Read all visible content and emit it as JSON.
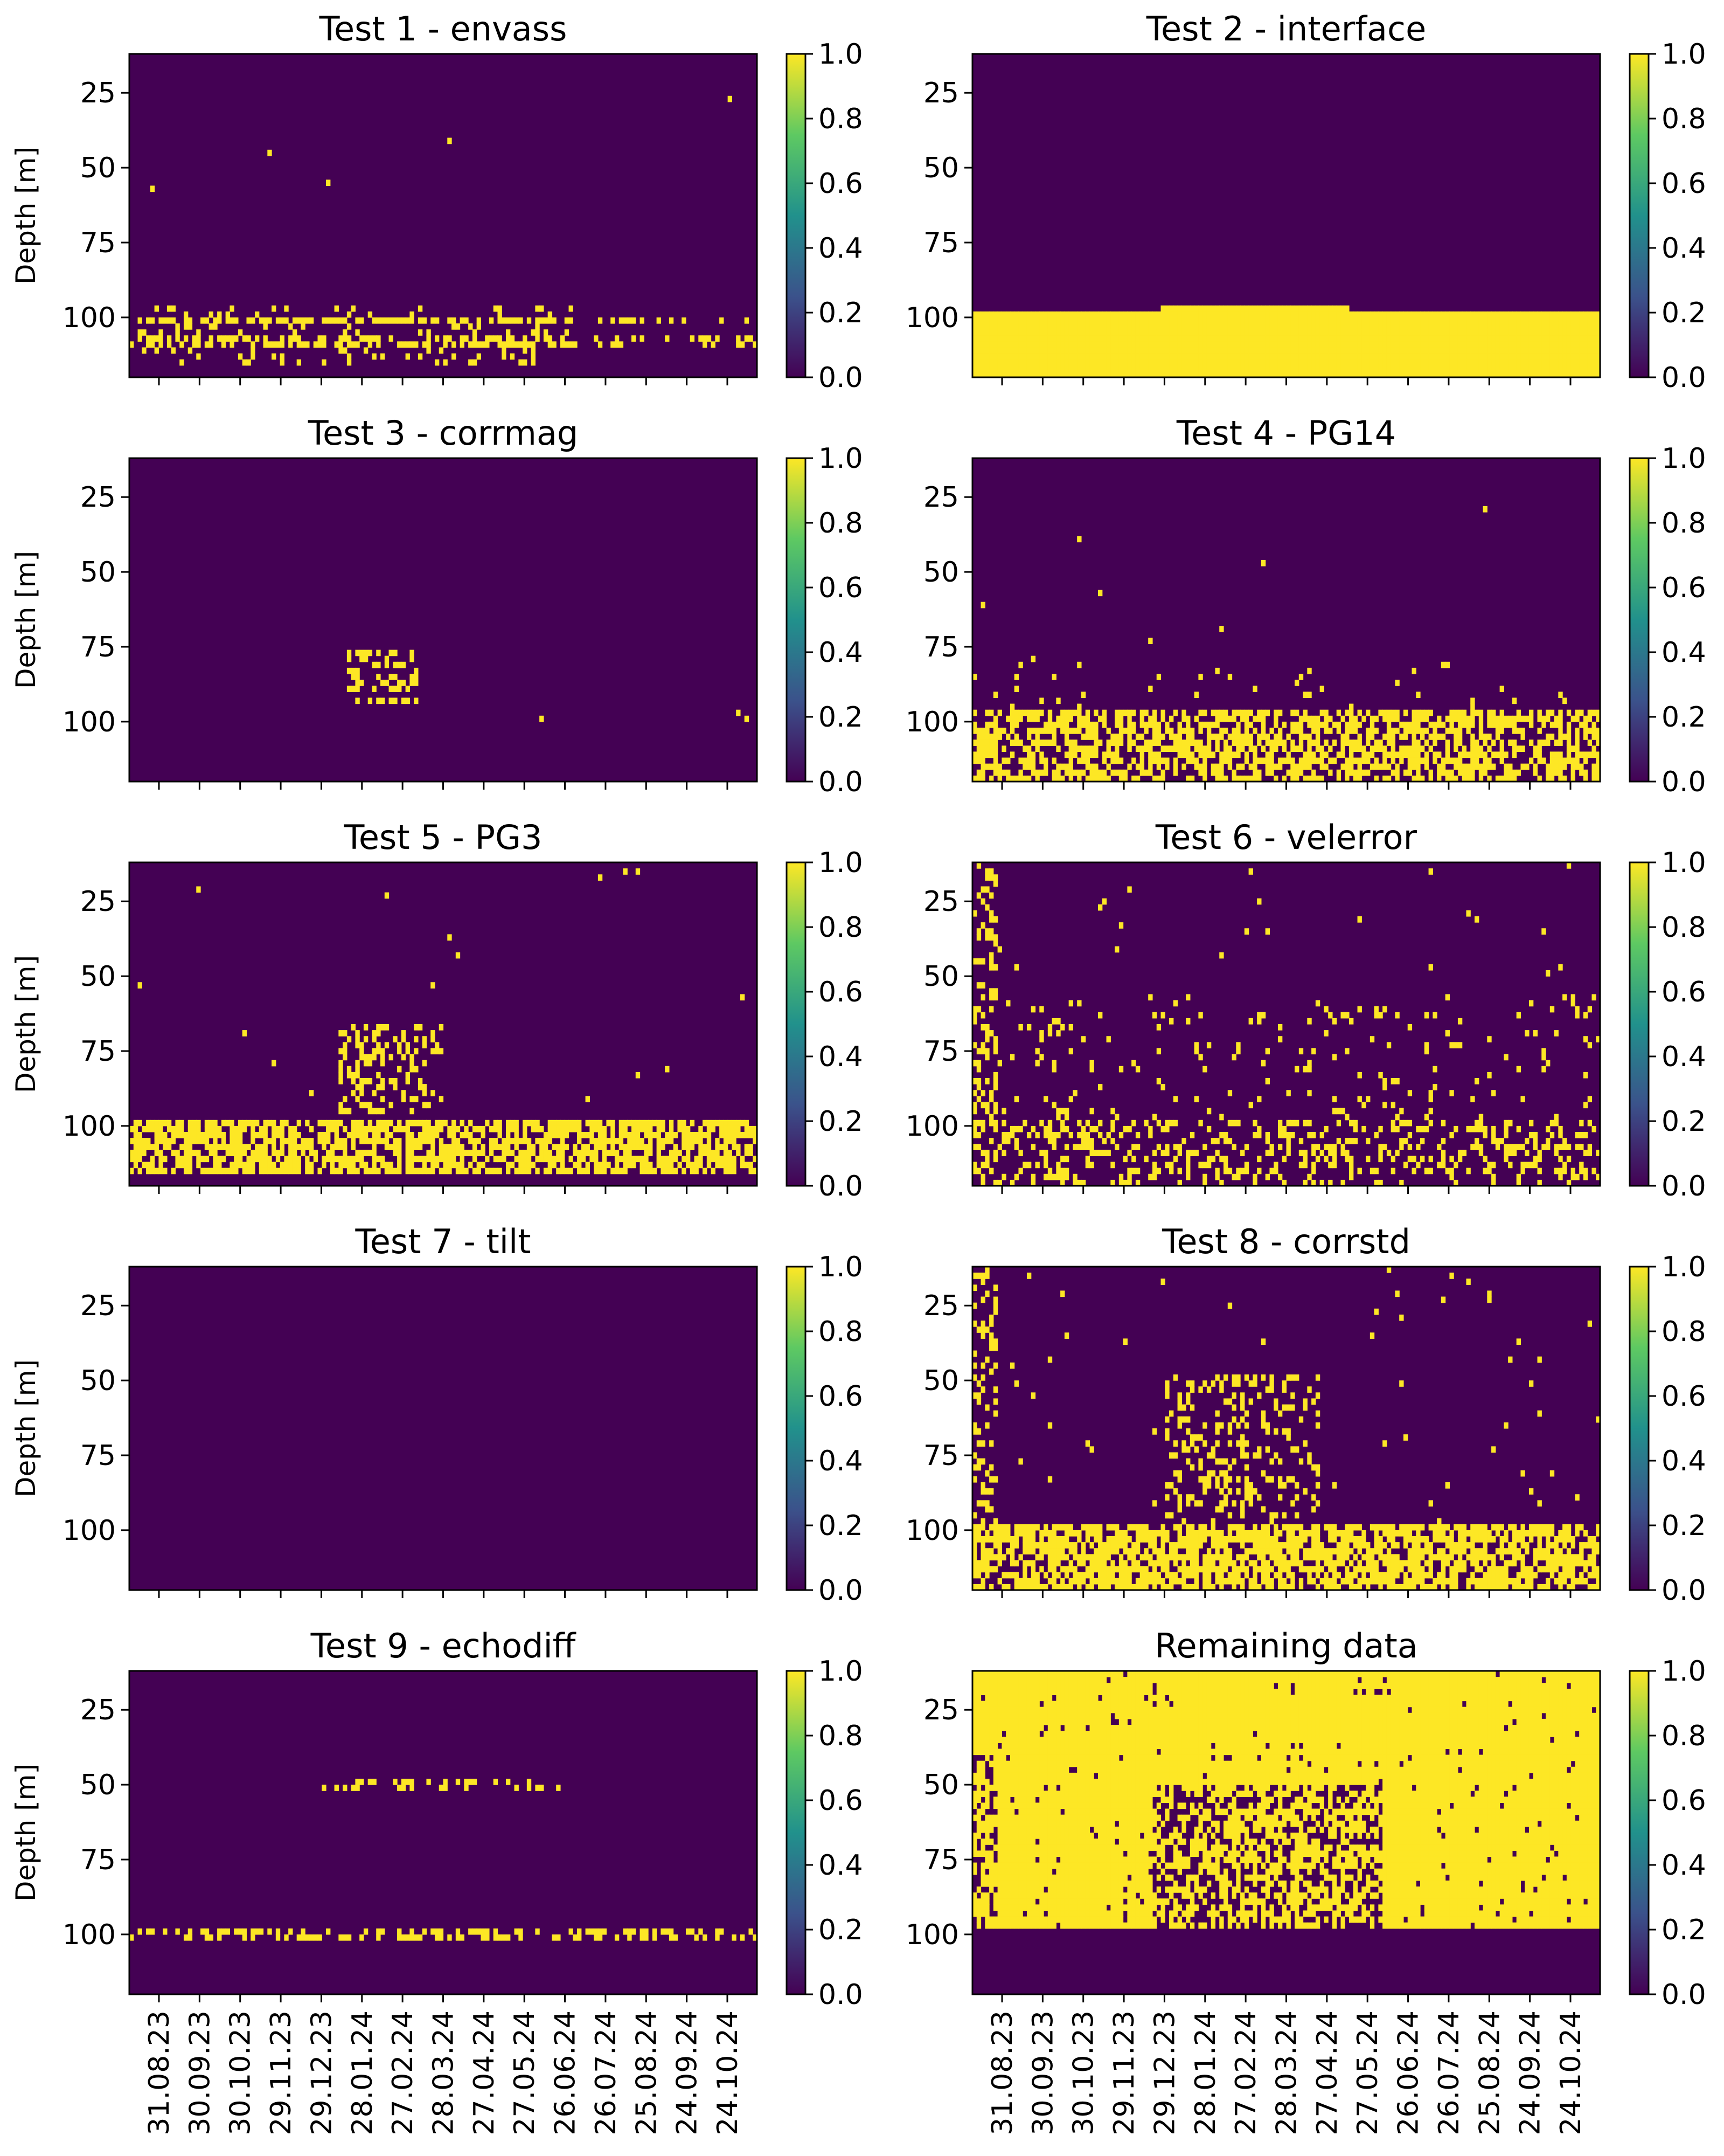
{
  "figure": {
    "colormap": [
      "#440154",
      "#3b528b",
      "#21918c",
      "#5ec962",
      "#fde725"
    ],
    "low_color": "#440154",
    "high_color": "#fde725"
  },
  "chart_data": [
    {
      "type": "heatmap",
      "title": "Test 1 - envass",
      "ylabel": "Depth [m]",
      "yticks": [
        25,
        50,
        75,
        100
      ],
      "ylim": [
        120,
        12
      ],
      "xticks": [],
      "colorbar_ticks": [
        "0.0",
        "0.2",
        "0.4",
        "0.6",
        "0.8",
        "1.0"
      ],
      "clim": [
        0,
        1
      ],
      "flag_band": "scattered near bottom (about 95-115 m)"
    },
    {
      "type": "heatmap",
      "title": "Test 2 - interface",
      "ylabel": "",
      "yticks": [
        25,
        50,
        75,
        100
      ],
      "ylim": [
        120,
        12
      ],
      "xticks": [],
      "colorbar_ticks": [
        "0.0",
        "0.2",
        "0.4",
        "0.6",
        "0.8",
        "1.0"
      ],
      "clim": [
        0,
        1
      ],
      "flag_band": "solid below about 96 m"
    },
    {
      "type": "heatmap",
      "title": "Test 3 - corrmag",
      "ylabel": "Depth [m]",
      "yticks": [
        25,
        50,
        75,
        100
      ],
      "ylim": [
        120,
        12
      ],
      "xticks": [],
      "colorbar_ticks": [
        "0.0",
        "0.2",
        "0.4",
        "0.6",
        "0.8",
        "1.0"
      ],
      "clim": [
        0,
        1
      ],
      "flag_band": "isolated cluster near Jan-Feb 2024 (75-95 m)"
    },
    {
      "type": "heatmap",
      "title": "Test 4 - PG14",
      "ylabel": "",
      "yticks": [
        25,
        50,
        75,
        100
      ],
      "ylim": [
        120,
        12
      ],
      "xticks": [],
      "colorbar_ticks": [
        "0.0",
        "0.2",
        "0.4",
        "0.6",
        "0.8",
        "1.0"
      ],
      "clim": [
        0,
        1
      ],
      "flag_band": "dense near bottom (about 95-120 m)"
    },
    {
      "type": "heatmap",
      "title": "Test 5 - PG3",
      "ylabel": "Depth [m]",
      "yticks": [
        25,
        50,
        75,
        100
      ],
      "ylim": [
        120,
        12
      ],
      "xticks": [],
      "colorbar_ticks": [
        "0.0",
        "0.2",
        "0.4",
        "0.6",
        "0.8",
        "1.0"
      ],
      "clim": [
        0,
        1
      ],
      "flag_band": "dense near bottom with plume 65-90 m in Jan-Mar 2024"
    },
    {
      "type": "heatmap",
      "title": "Test 6 - velerror",
      "ylabel": "",
      "yticks": [
        25,
        50,
        75,
        100
      ],
      "ylim": [
        120,
        12
      ],
      "xticks": [],
      "colorbar_ticks": [
        "0.0",
        "0.2",
        "0.4",
        "0.6",
        "0.8",
        "1.0"
      ],
      "clim": [
        0,
        1
      ],
      "flag_band": "scattered throughout, denser below 60 m"
    },
    {
      "type": "heatmap",
      "title": "Test 7 - tilt",
      "ylabel": "Depth [m]",
      "yticks": [
        25,
        50,
        75,
        100
      ],
      "ylim": [
        120,
        12
      ],
      "xticks": [],
      "colorbar_ticks": [
        "0.0",
        "0.2",
        "0.4",
        "0.6",
        "0.8",
        "1.0"
      ],
      "clim": [
        0,
        1
      ],
      "flag_band": "none"
    },
    {
      "type": "heatmap",
      "title": "Test 8 - corrstd",
      "ylabel": "",
      "yticks": [
        25,
        50,
        75,
        100
      ],
      "ylim": [
        120,
        12
      ],
      "xticks": [],
      "colorbar_ticks": [
        "0.0",
        "0.2",
        "0.4",
        "0.6",
        "0.8",
        "1.0"
      ],
      "clim": [
        0,
        1
      ],
      "flag_band": "dense below 95 m, scattered 45-95 m"
    },
    {
      "type": "heatmap",
      "title": "Test 9 - echodiff",
      "ylabel": "Depth [m]",
      "yticks": [
        25,
        50,
        75,
        100
      ],
      "ylim": [
        120,
        12
      ],
      "xticks": [
        "31.08.23",
        "30.09.23",
        "30.10.23",
        "29.11.23",
        "29.12.23",
        "28.01.24",
        "27.02.24",
        "28.03.24",
        "27.04.24",
        "27.05.24",
        "26.06.24",
        "26.07.24",
        "25.08.24",
        "24.09.24",
        "24.10.24"
      ],
      "colorbar_ticks": [
        "0.0",
        "0.2",
        "0.4",
        "0.6",
        "0.8",
        "1.0"
      ],
      "clim": [
        0,
        1
      ],
      "flag_band": "thin lines near 50 m and 100 m"
    },
    {
      "type": "heatmap",
      "title": "Remaining data",
      "ylabel": "",
      "yticks": [
        25,
        50,
        75,
        100
      ],
      "ylim": [
        120,
        12
      ],
      "xticks": [
        "31.08.23",
        "30.09.23",
        "30.10.23",
        "29.11.23",
        "29.12.23",
        "28.01.24",
        "27.02.24",
        "28.03.24",
        "27.04.24",
        "27.05.24",
        "26.06.24",
        "26.07.24",
        "25.08.24",
        "24.09.24",
        "24.10.24"
      ],
      "colorbar_ticks": [
        "0.0",
        "0.2",
        "0.4",
        "0.6",
        "0.8",
        "1.0"
      ],
      "clim": [
        0,
        1
      ],
      "flag_band": "value 1 above about 97 m except gaps; 0 below"
    }
  ]
}
